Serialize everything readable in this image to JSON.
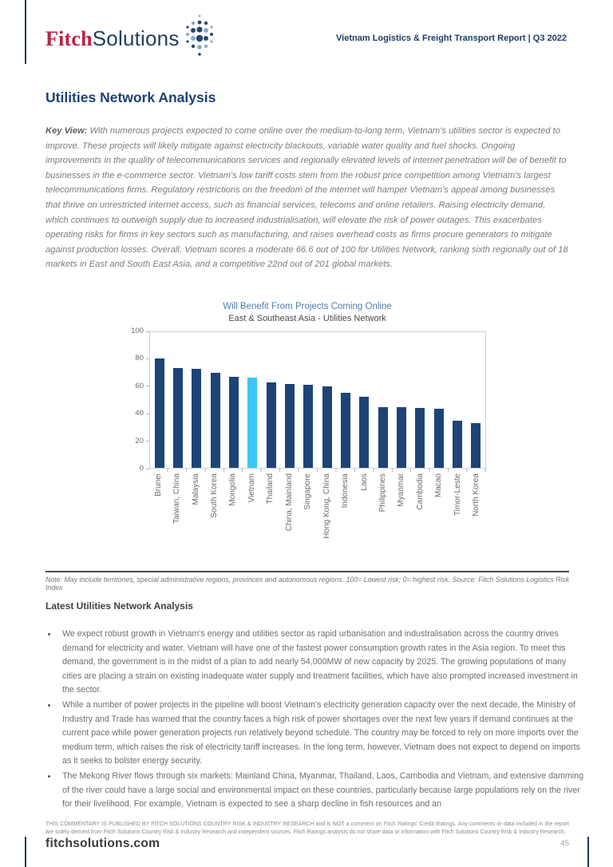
{
  "header": {
    "logo_fitch": "Fitch",
    "logo_solutions": "Solutions",
    "report_title": "Vietnam Logistics & Freight Transport Report | Q3 2022"
  },
  "page": {
    "title": "Utilities Network Analysis",
    "key_view_label": "Key View:",
    "key_view_text": " With numerous projects expected to come online over the medium-to-long term, Vietnam's utilities sector is expected to improve. These projects will likely mitigate against electricity blackouts, variable water quality and fuel shocks. Ongoing improvements in the quality of telecommunications services and regionally elevated levels of internet penetration will be of benefit to businesses in the e-commerce sector. Vietnam's low tariff costs stem from the robust price competition among Vietnam's largest telecommunications firms. Regulatory restrictions on the freedom of the internet will hamper Vietnam's appeal among businesses that thrive on unrestricted internet access, such as financial services, telecoms and online retailers. Raising electricity demand, which continues to outweigh supply due to increased industrialisation, will elevate the risk of power outages. This exacerbates operating risks for firms in key sectors such as manufacturing, and raises overhead costs as firms procure generators to mitigate against production losses. Overall, Vietnam scores a moderate 66.6 out of 100 for Utilities Network, ranking sixth regionally out of 18 markets in East and South East Asia, and a competitive 22nd out of 201 global markets.",
    "section_heading": "Latest Utilities Network Analysis",
    "bullets": [
      "We expect robust growth in Vietnam's energy and utilities sector as rapid urbanisation and industralisation across the country drives demand for electricity and water. Vietnam will have one of the fastest power consumption growth rates in the Asia region. To meet this demand, the government is in the midst of a plan to add nearly 54,000MW of new capacity by 2025. The growing populations of many cities are placing a strain on existing inadequate water supply and treatment facilities, which have also prompted increased investment in the sector.",
      "While a number of power projects in the pipeline will boost Vietnam's electricity generation capacity over the next decade, the Ministry of Industry and Trade has warned that the country faces a high risk of power shortages over the next few years if demand continues at the current pace while power generation projects run relatively beyond schedule. The country may be forced to rely on more imports over the medium term, which raises the risk of electricity tariff increases. In the long term, however, Vietnam does not expect to depend on imports as it seeks to bolster energy security.",
      "The Mekong River flows through six markets: Mainland China, Myanmar, Thailand, Laos, Cambodia and Vietnam, and extensive damming of the river could have a large social and environmental impact on these countries, particularly because large populations rely on the river for their livelihood. For example, Vietnam is expected to see a sharp decline in fish resources and an"
    ]
  },
  "chart_data": {
    "type": "bar",
    "title": "Will Benefit From Projects Coming Online",
    "subtitle": "East & Southeast Asia - Utilities Network",
    "categories": [
      "Brunei",
      "Taiwan, China",
      "Malaysia",
      "South Korea",
      "Mongolia",
      "Vietnam",
      "Thailand",
      "China, Mainland",
      "Singapore",
      "Hong Kong, China",
      "Indonesia",
      "Laos",
      "Philippines",
      "Myanmar",
      "Cambodia",
      "Macao",
      "Timor-Leste",
      "North Korea"
    ],
    "values": [
      80.5,
      73.5,
      73.0,
      70.0,
      67.0,
      66.6,
      63.0,
      61.5,
      61.0,
      60.0,
      55.5,
      52.5,
      45.0,
      44.5,
      44.0,
      43.5,
      34.5,
      33.0
    ],
    "highlight_category": "Vietnam",
    "bar_color": "#1c4476",
    "highlight_color": "#3cc7f4",
    "ylim": [
      0,
      100
    ],
    "yticks": [
      0,
      20,
      40,
      60,
      80,
      100
    ],
    "grid": false,
    "legend": null,
    "note": "Note: May include territories, special administrative regions, provinces and autonomous regions. 100= Lowest risk; 0= highest risk. Source: Fitch Solutions Logistics Risk Index"
  },
  "footer": {
    "disclaimer": "THIS COMMENTARY IS PUBLISHED BY FITCH SOLUTIONS COUNTRY RISK & INDUSTRY RESEARCH and is NOT a comment on Fitch Ratings' Credit Ratings. Any comments or data included in the report are solely derived from Fitch Solutions Country Risk & Industry Research and independent sources. Fitch Ratings analysts do not share data or information with Fitch Solutions Country Risk & Industry Research.",
    "website": "fitchsolutions.com",
    "page_number": "45"
  }
}
